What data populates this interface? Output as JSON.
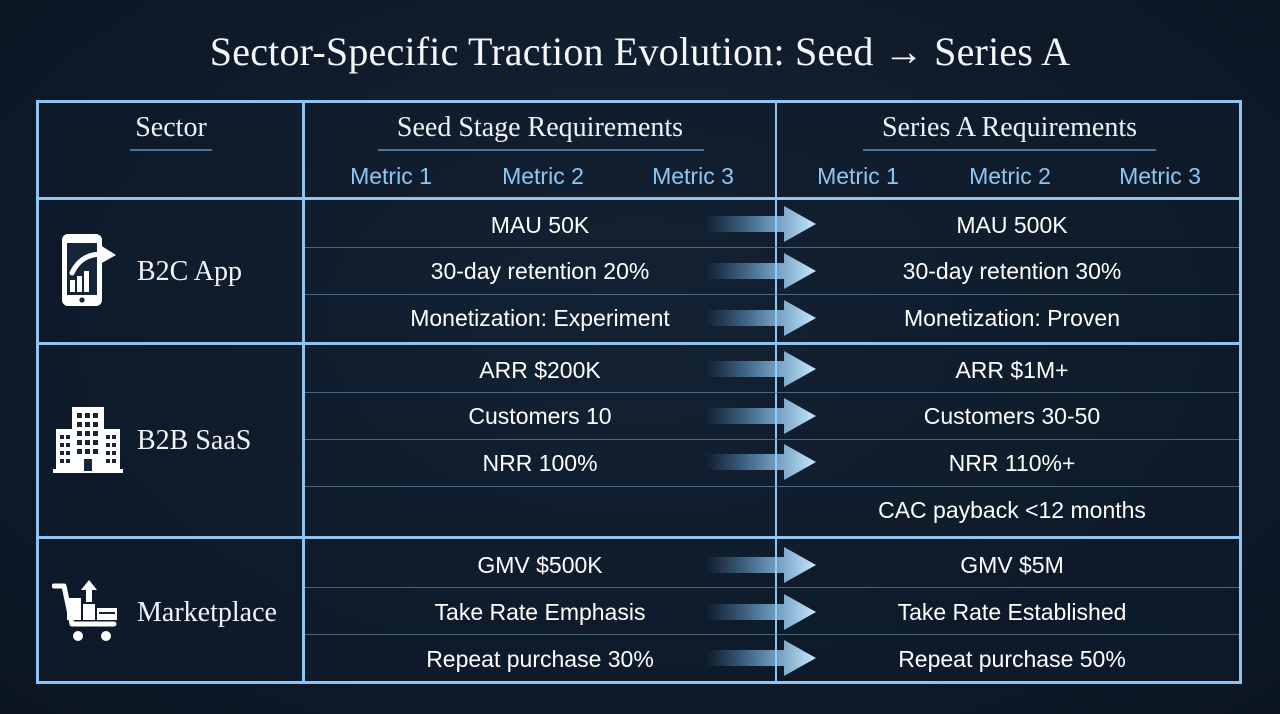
{
  "title": "Sector-Specific Traction Evolution: Seed → Series A",
  "header": {
    "sector": "Sector",
    "seed": "Seed Stage Requirements",
    "seriesA": "Series A Requirements",
    "metrics": [
      "Metric 1",
      "Metric 2",
      "Metric 3"
    ]
  },
  "sectors": [
    {
      "name": "B2C App",
      "icon": "phone-growth-icon",
      "rows": [
        {
          "seed": "MAU 50K",
          "seriesA": "MAU 500K"
        },
        {
          "seed": "30-day retention 20%",
          "seriesA": "30-day retention 30%"
        },
        {
          "seed": "Monetization: Experiment",
          "seriesA": "Monetization: Proven"
        }
      ]
    },
    {
      "name": "B2B SaaS",
      "icon": "office-building-icon",
      "rows": [
        {
          "seed": "ARR $200K",
          "seriesA": "ARR $1M+"
        },
        {
          "seed": "Customers 10",
          "seriesA": "Customers 30-50"
        },
        {
          "seed": "NRR 100%",
          "seriesA": "NRR 110%+"
        },
        {
          "seed": "",
          "seriesA": "CAC payback <12 months"
        }
      ]
    },
    {
      "name": "Marketplace",
      "icon": "shopping-cart-icon",
      "rows": [
        {
          "seed": "GMV $500K",
          "seriesA": "GMV $5M"
        },
        {
          "seed": "Take Rate Emphasis",
          "seriesA": "Take Rate Established"
        },
        {
          "seed": "Repeat purchase 30%",
          "seriesA": "Repeat purchase 50%"
        }
      ]
    }
  ],
  "colors": {
    "background": "#0f1b2a",
    "grid": "#8ec4ef",
    "metricText": "#8fc6f2",
    "arrow": "#a9d8fb"
  }
}
